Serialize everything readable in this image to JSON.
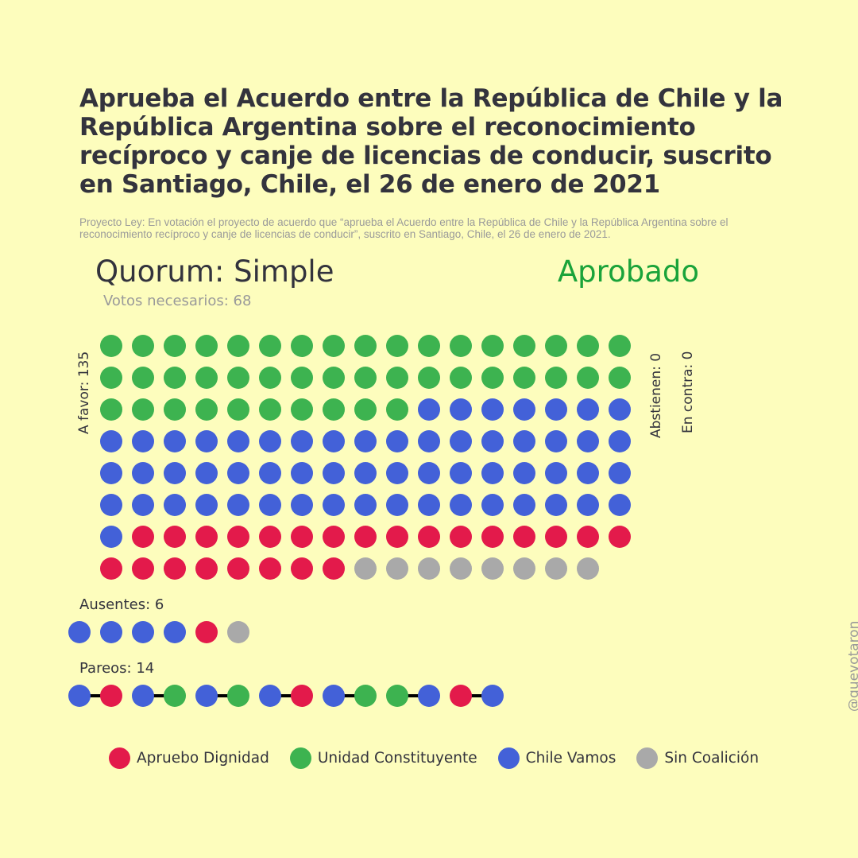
{
  "title": "Aprueba el Acuerdo entre la República de Chile y la República Argentina sobre el reconocimiento recíproco y canje de licencias de conducir, suscrito en Santiago, Chile, el 26 de enero de 2021",
  "subtitle": "Proyecto Ley: En votación el proyecto de acuerdo que “aprueba el Acuerdo entre la República de Chile y la República Argentina sobre el reconocimiento recíproco y canje de licencias de conducir”, suscrito en Santiago, Chile, el 26 de enero de 2021.",
  "quorum": "Quorum: Simple",
  "result": "Aprobado",
  "votes_needed": "Votos necesarios: 68",
  "labels": {
    "favor": "A favor: 135",
    "abstain": "Abstienen: 0",
    "against": "En contra: 0",
    "absent": "Ausentes: 6",
    "pairs": "Pareos: 14"
  },
  "handle": "@quevotaron",
  "colors": {
    "background": "#fdfdbd",
    "result": "#1aa33a",
    "apruebo_dignidad": "#e31a4b",
    "unidad_constituyente": "#3db350",
    "chile_vamos": "#4361d8",
    "sin_coalicion": "#a9a9a9"
  },
  "chart_data": {
    "type": "waffle",
    "groups": [
      {
        "name": "A favor",
        "total": 135,
        "counts": {
          "Unidad Constituyente": 44,
          "Chile Vamos": 59,
          "Apruebo Dignidad": 24,
          "Sin Coalición": 8
        }
      },
      {
        "name": "Abstienen",
        "total": 0,
        "counts": {}
      },
      {
        "name": "En contra",
        "total": 0,
        "counts": {}
      },
      {
        "name": "Ausentes",
        "total": 6,
        "sequence": [
          "Chile Vamos",
          "Chile Vamos",
          "Chile Vamos",
          "Chile Vamos",
          "Apruebo Dignidad",
          "Sin Coalición"
        ]
      },
      {
        "name": "Pareos",
        "total": 14,
        "pairs": [
          [
            "Chile Vamos",
            "Apruebo Dignidad"
          ],
          [
            "Chile Vamos",
            "Unidad Constituyente"
          ],
          [
            "Chile Vamos",
            "Unidad Constituyente"
          ],
          [
            "Chile Vamos",
            "Apruebo Dignidad"
          ],
          [
            "Chile Vamos",
            "Unidad Constituyente"
          ],
          [
            "Unidad Constituyente",
            "Chile Vamos"
          ],
          [
            "Apruebo Dignidad",
            "Chile Vamos"
          ]
        ]
      }
    ],
    "legend": [
      {
        "name": "Apruebo Dignidad",
        "color": "#e31a4b"
      },
      {
        "name": "Unidad Constituyente",
        "color": "#3db350"
      },
      {
        "name": "Chile Vamos",
        "color": "#4361d8"
      },
      {
        "name": "Sin Coalición",
        "color": "#a9a9a9"
      }
    ]
  }
}
